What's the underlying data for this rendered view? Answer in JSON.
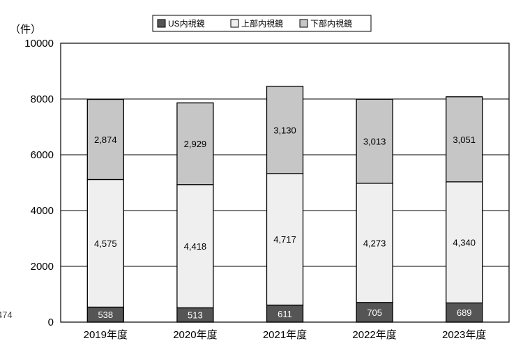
{
  "chart_data": {
    "type": "bar",
    "stacked": true,
    "title": "",
    "xlabel": "",
    "ylabel": "（件）",
    "ylim": [
      0,
      10000
    ],
    "yticks": [
      0,
      2000,
      4000,
      6000,
      8000,
      10000
    ],
    "grid": true,
    "legend_position": "top-center",
    "categories": [
      "2019年度",
      "2020年度",
      "2021年度",
      "2022年度",
      "2023年度"
    ],
    "series": [
      {
        "name": "US内視鏡",
        "color": "#555555",
        "label_color": "#ffffff",
        "values": [
          538,
          513,
          611,
          705,
          689
        ],
        "labels": [
          "538",
          "513",
          "611",
          "705",
          "689"
        ]
      },
      {
        "name": "上部内視鏡",
        "color": "#efefef",
        "label_color": "#000000",
        "values": [
          4575,
          4418,
          4717,
          4273,
          4340
        ],
        "labels": [
          "4,575",
          "4,418",
          "4,717",
          "4,273",
          "4,340"
        ]
      },
      {
        "name": "下部内視鏡",
        "color": "#c6c6c6",
        "label_color": "#000000",
        "values": [
          2874,
          2929,
          3130,
          3013,
          3051
        ],
        "labels": [
          "2,874",
          "2,929",
          "3,130",
          "3,013",
          "3,051"
        ]
      }
    ],
    "annotations": [
      "474"
    ]
  }
}
